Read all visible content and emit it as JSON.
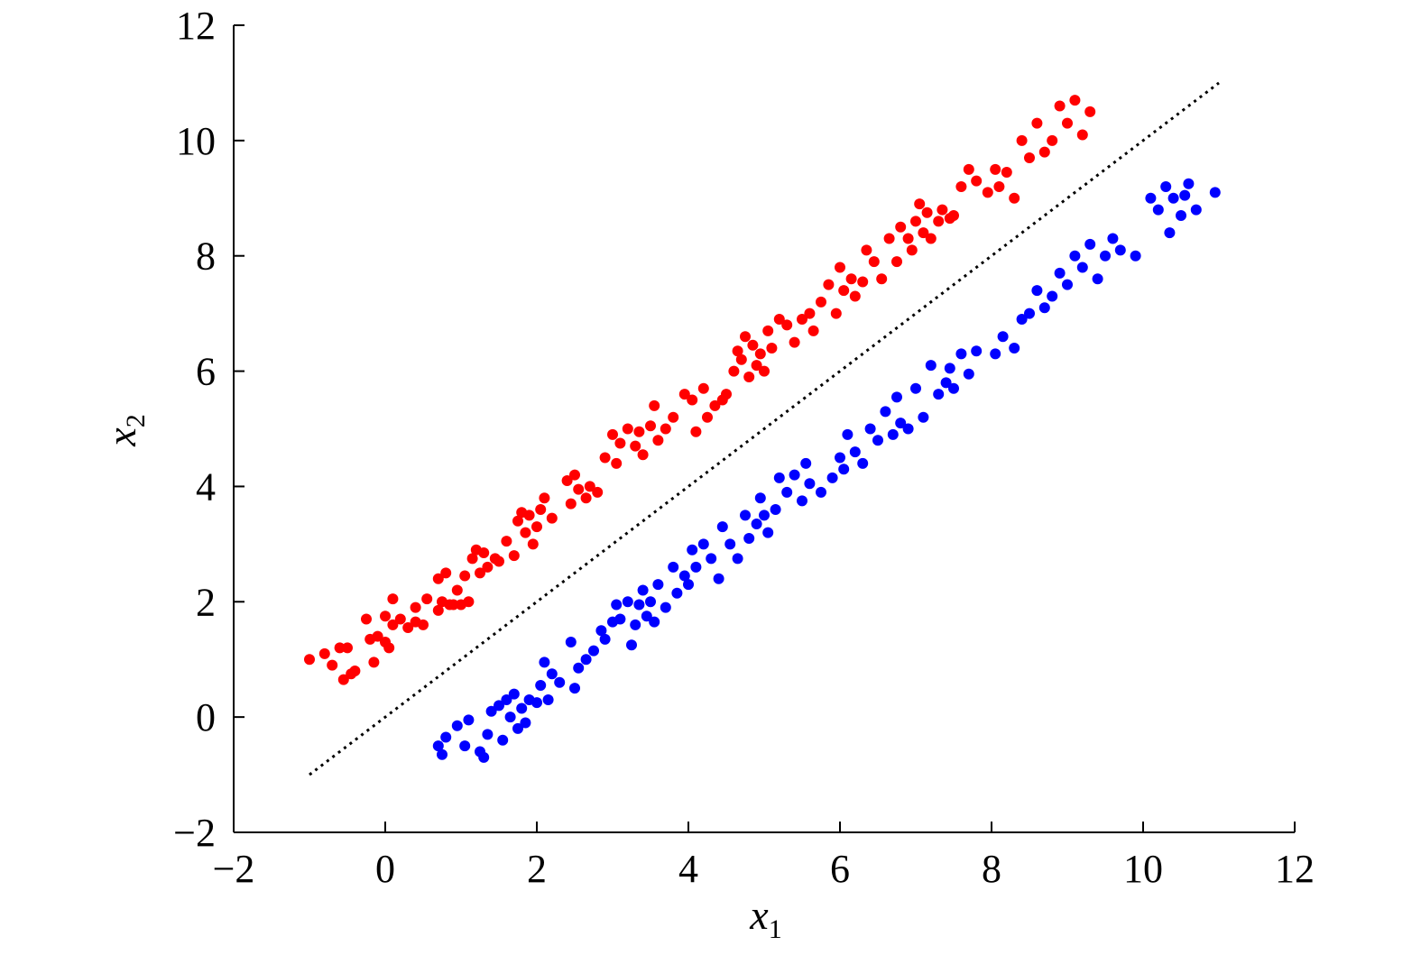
{
  "chart_data": {
    "type": "scatter",
    "title": "",
    "xlabel": "x",
    "xlabel_sub": "1",
    "ylabel": "x",
    "ylabel_sub": "2",
    "xlim": [
      -2,
      12
    ],
    "ylim": [
      -2,
      12
    ],
    "xticks": [
      -2,
      0,
      2,
      4,
      6,
      8,
      10,
      12
    ],
    "yticks": [
      -2,
      0,
      2,
      4,
      6,
      8,
      10,
      12
    ],
    "xtick_labels": [
      "−2",
      "0",
      "2",
      "4",
      "6",
      "8",
      "10",
      "12"
    ],
    "ytick_labels": [
      "−2",
      "0",
      "2",
      "4",
      "6",
      "8",
      "10",
      "12"
    ],
    "grid": false,
    "legend": "none",
    "boundary": {
      "style": "dotted",
      "color": "#000000",
      "x": [
        -1,
        11
      ],
      "y": [
        -1,
        11
      ]
    },
    "series": [
      {
        "color": "#ff0000",
        "points": [
          [
            -1.0,
            1.0
          ],
          [
            -0.8,
            1.1
          ],
          [
            -0.7,
            0.9
          ],
          [
            -0.6,
            1.2
          ],
          [
            -0.55,
            0.65
          ],
          [
            -0.5,
            1.2
          ],
          [
            -0.45,
            0.75
          ],
          [
            -0.4,
            0.8
          ],
          [
            -0.25,
            1.7
          ],
          [
            -0.2,
            1.35
          ],
          [
            -0.15,
            0.95
          ],
          [
            -0.1,
            1.4
          ],
          [
            0.0,
            1.3
          ],
          [
            0.0,
            1.75
          ],
          [
            0.05,
            1.2
          ],
          [
            0.1,
            1.6
          ],
          [
            0.1,
            2.05
          ],
          [
            0.2,
            1.7
          ],
          [
            0.3,
            1.55
          ],
          [
            0.4,
            1.65
          ],
          [
            0.4,
            1.9
          ],
          [
            0.5,
            1.6
          ],
          [
            0.55,
            2.05
          ],
          [
            0.7,
            2.4
          ],
          [
            0.7,
            1.85
          ],
          [
            0.75,
            2.0
          ],
          [
            0.8,
            2.5
          ],
          [
            0.85,
            1.95
          ],
          [
            0.9,
            1.95
          ],
          [
            0.95,
            2.2
          ],
          [
            1.0,
            1.95
          ],
          [
            1.05,
            2.45
          ],
          [
            1.1,
            2.0
          ],
          [
            1.15,
            2.75
          ],
          [
            1.2,
            2.9
          ],
          [
            1.25,
            2.5
          ],
          [
            1.3,
            2.85
          ],
          [
            1.35,
            2.6
          ],
          [
            1.45,
            2.75
          ],
          [
            1.5,
            2.7
          ],
          [
            1.6,
            3.05
          ],
          [
            1.7,
            2.8
          ],
          [
            1.75,
            3.4
          ],
          [
            1.8,
            3.55
          ],
          [
            1.85,
            3.2
          ],
          [
            1.9,
            3.5
          ],
          [
            1.95,
            3.0
          ],
          [
            2.0,
            3.3
          ],
          [
            2.05,
            3.6
          ],
          [
            2.1,
            3.8
          ],
          [
            2.2,
            3.45
          ],
          [
            2.4,
            4.1
          ],
          [
            2.45,
            3.7
          ],
          [
            2.5,
            4.2
          ],
          [
            2.55,
            3.95
          ],
          [
            2.65,
            3.8
          ],
          [
            2.7,
            4.0
          ],
          [
            2.8,
            3.9
          ],
          [
            2.9,
            4.5
          ],
          [
            3.0,
            4.9
          ],
          [
            3.05,
            4.4
          ],
          [
            3.1,
            4.75
          ],
          [
            3.2,
            5.0
          ],
          [
            3.3,
            4.7
          ],
          [
            3.35,
            4.95
          ],
          [
            3.4,
            4.55
          ],
          [
            3.5,
            5.05
          ],
          [
            3.55,
            5.4
          ],
          [
            3.6,
            4.8
          ],
          [
            3.7,
            5.0
          ],
          [
            3.8,
            5.2
          ],
          [
            3.95,
            5.6
          ],
          [
            4.05,
            5.5
          ],
          [
            4.1,
            4.95
          ],
          [
            4.2,
            5.7
          ],
          [
            4.25,
            5.2
          ],
          [
            4.35,
            5.4
          ],
          [
            4.45,
            5.5
          ],
          [
            4.5,
            5.6
          ],
          [
            4.6,
            6.0
          ],
          [
            4.65,
            6.35
          ],
          [
            4.7,
            6.2
          ],
          [
            4.75,
            6.6
          ],
          [
            4.8,
            5.9
          ],
          [
            4.85,
            6.45
          ],
          [
            4.9,
            6.1
          ],
          [
            4.95,
            6.3
          ],
          [
            5.0,
            6.0
          ],
          [
            5.05,
            6.7
          ],
          [
            5.1,
            6.4
          ],
          [
            5.2,
            6.9
          ],
          [
            5.3,
            6.8
          ],
          [
            5.4,
            6.5
          ],
          [
            5.5,
            6.9
          ],
          [
            5.6,
            7.0
          ],
          [
            5.65,
            6.7
          ],
          [
            5.75,
            7.2
          ],
          [
            5.85,
            7.5
          ],
          [
            5.95,
            7.0
          ],
          [
            6.0,
            7.8
          ],
          [
            6.05,
            7.4
          ],
          [
            6.15,
            7.6
          ],
          [
            6.2,
            7.3
          ],
          [
            6.3,
            7.55
          ],
          [
            6.35,
            8.1
          ],
          [
            6.45,
            7.9
          ],
          [
            6.55,
            7.6
          ],
          [
            6.65,
            8.3
          ],
          [
            6.75,
            7.9
          ],
          [
            6.8,
            8.5
          ],
          [
            6.9,
            8.3
          ],
          [
            6.95,
            8.1
          ],
          [
            7.0,
            8.6
          ],
          [
            7.05,
            8.9
          ],
          [
            7.1,
            8.4
          ],
          [
            7.15,
            8.75
          ],
          [
            7.2,
            8.3
          ],
          [
            7.3,
            8.6
          ],
          [
            7.35,
            8.8
          ],
          [
            7.45,
            8.65
          ],
          [
            7.5,
            8.7
          ],
          [
            7.6,
            9.2
          ],
          [
            7.7,
            9.5
          ],
          [
            7.8,
            9.3
          ],
          [
            7.95,
            9.1
          ],
          [
            8.05,
            9.5
          ],
          [
            8.1,
            9.2
          ],
          [
            8.2,
            9.45
          ],
          [
            8.3,
            9.0
          ],
          [
            8.4,
            10.0
          ],
          [
            8.5,
            9.7
          ],
          [
            8.6,
            10.3
          ],
          [
            8.7,
            9.8
          ],
          [
            8.8,
            10.0
          ],
          [
            8.9,
            10.6
          ],
          [
            9.0,
            10.3
          ],
          [
            9.1,
            10.7
          ],
          [
            9.2,
            10.1
          ],
          [
            9.3,
            10.5
          ]
        ]
      },
      {
        "color": "#0000ff",
        "points": [
          [
            0.7,
            -0.5
          ],
          [
            0.75,
            -0.65
          ],
          [
            0.8,
            -0.35
          ],
          [
            0.95,
            -0.15
          ],
          [
            1.05,
            -0.5
          ],
          [
            1.1,
            -0.05
          ],
          [
            1.25,
            -0.6
          ],
          [
            1.3,
            -0.7
          ],
          [
            1.35,
            -0.3
          ],
          [
            1.4,
            0.1
          ],
          [
            1.5,
            0.2
          ],
          [
            1.55,
            -0.4
          ],
          [
            1.6,
            0.3
          ],
          [
            1.65,
            0.0
          ],
          [
            1.7,
            0.4
          ],
          [
            1.75,
            -0.2
          ],
          [
            1.8,
            0.15
          ],
          [
            1.85,
            -0.1
          ],
          [
            1.9,
            0.3
          ],
          [
            2.0,
            0.25
          ],
          [
            2.05,
            0.55
          ],
          [
            2.1,
            0.95
          ],
          [
            2.15,
            0.3
          ],
          [
            2.2,
            0.75
          ],
          [
            2.3,
            0.6
          ],
          [
            2.45,
            1.3
          ],
          [
            2.5,
            0.5
          ],
          [
            2.55,
            0.85
          ],
          [
            2.65,
            1.0
          ],
          [
            2.75,
            1.15
          ],
          [
            2.85,
            1.5
          ],
          [
            2.9,
            1.35
          ],
          [
            3.0,
            1.65
          ],
          [
            3.05,
            1.95
          ],
          [
            3.1,
            1.7
          ],
          [
            3.2,
            2.0
          ],
          [
            3.25,
            1.25
          ],
          [
            3.3,
            1.6
          ],
          [
            3.35,
            1.95
          ],
          [
            3.4,
            2.2
          ],
          [
            3.45,
            1.75
          ],
          [
            3.5,
            2.0
          ],
          [
            3.55,
            1.65
          ],
          [
            3.6,
            2.3
          ],
          [
            3.7,
            1.9
          ],
          [
            3.8,
            2.6
          ],
          [
            3.85,
            2.15
          ],
          [
            3.95,
            2.45
          ],
          [
            4.0,
            2.3
          ],
          [
            4.05,
            2.9
          ],
          [
            4.1,
            2.6
          ],
          [
            4.2,
            3.0
          ],
          [
            4.3,
            2.75
          ],
          [
            4.4,
            2.4
          ],
          [
            4.45,
            3.3
          ],
          [
            4.55,
            3.0
          ],
          [
            4.65,
            2.75
          ],
          [
            4.75,
            3.5
          ],
          [
            4.8,
            3.1
          ],
          [
            4.9,
            3.35
          ],
          [
            4.95,
            3.8
          ],
          [
            5.0,
            3.5
          ],
          [
            5.05,
            3.2
          ],
          [
            5.15,
            3.6
          ],
          [
            5.2,
            4.15
          ],
          [
            5.3,
            3.9
          ],
          [
            5.4,
            4.2
          ],
          [
            5.5,
            3.75
          ],
          [
            5.55,
            4.4
          ],
          [
            5.6,
            4.05
          ],
          [
            5.75,
            3.9
          ],
          [
            5.9,
            4.15
          ],
          [
            6.0,
            4.5
          ],
          [
            6.05,
            4.3
          ],
          [
            6.1,
            4.9
          ],
          [
            6.2,
            4.6
          ],
          [
            6.3,
            4.4
          ],
          [
            6.4,
            5.0
          ],
          [
            6.5,
            4.8
          ],
          [
            6.6,
            5.3
          ],
          [
            6.7,
            4.9
          ],
          [
            6.75,
            5.55
          ],
          [
            6.8,
            5.1
          ],
          [
            6.9,
            5.0
          ],
          [
            7.0,
            5.7
          ],
          [
            7.1,
            5.2
          ],
          [
            7.2,
            6.1
          ],
          [
            7.3,
            5.6
          ],
          [
            7.4,
            5.8
          ],
          [
            7.45,
            6.05
          ],
          [
            7.5,
            5.7
          ],
          [
            7.6,
            6.3
          ],
          [
            7.7,
            5.95
          ],
          [
            7.8,
            6.35
          ],
          [
            8.05,
            6.3
          ],
          [
            8.15,
            6.6
          ],
          [
            8.3,
            6.4
          ],
          [
            8.4,
            6.9
          ],
          [
            8.5,
            7.0
          ],
          [
            8.6,
            7.4
          ],
          [
            8.7,
            7.1
          ],
          [
            8.8,
            7.3
          ],
          [
            8.9,
            7.7
          ],
          [
            9.0,
            7.5
          ],
          [
            9.1,
            8.0
          ],
          [
            9.2,
            7.8
          ],
          [
            9.3,
            8.2
          ],
          [
            9.4,
            7.6
          ],
          [
            9.5,
            8.0
          ],
          [
            9.6,
            8.3
          ],
          [
            9.7,
            8.1
          ],
          [
            9.9,
            8.0
          ],
          [
            10.1,
            9.0
          ],
          [
            10.2,
            8.8
          ],
          [
            10.3,
            9.2
          ],
          [
            10.35,
            8.4
          ],
          [
            10.4,
            9.0
          ],
          [
            10.5,
            8.7
          ],
          [
            10.55,
            9.05
          ],
          [
            10.6,
            9.25
          ],
          [
            10.7,
            8.8
          ],
          [
            10.95,
            9.1
          ]
        ]
      }
    ]
  }
}
